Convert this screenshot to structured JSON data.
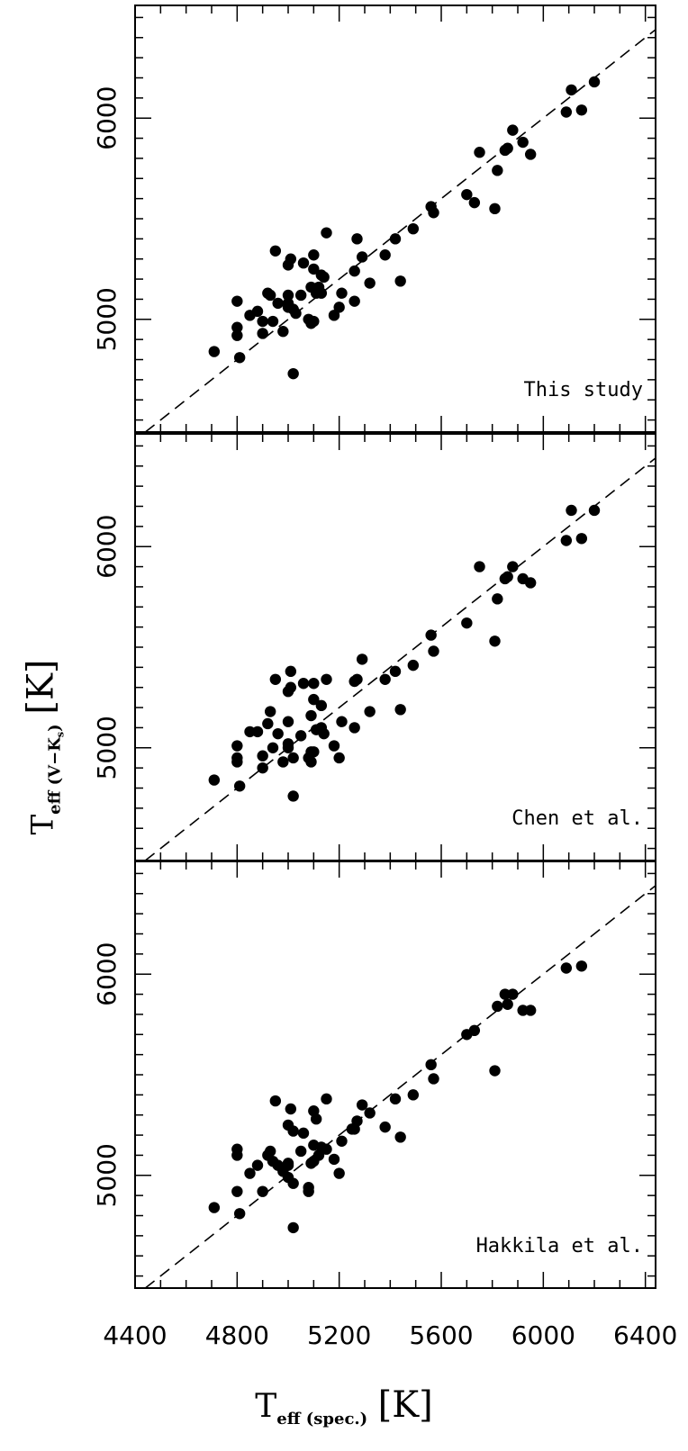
{
  "chart_data": {
    "type": "scatter",
    "x_axis": {
      "label_main": "T",
      "label_sub": "eff (spec.)",
      "unit": "[K]",
      "ticks": [
        4400,
        4800,
        5200,
        5600,
        6000,
        6400
      ],
      "xlim": [
        4400,
        6440
      ]
    },
    "y_axis": {
      "label_main": "T",
      "label_sub": "eff (V−K",
      "label_subsub": "s",
      "label_close": ")",
      "unit": "[K]",
      "ticks": [
        5000,
        6000
      ],
      "ylim": [
        4440,
        6560
      ]
    },
    "reference_line": "y = x (dashed)",
    "panels": [
      {
        "label": "This study",
        "points": [
          [
            4710,
            4840
          ],
          [
            4800,
            4960
          ],
          [
            4800,
            4920
          ],
          [
            4800,
            5090
          ],
          [
            4810,
            4810
          ],
          [
            4850,
            5020
          ],
          [
            4880,
            5040
          ],
          [
            4900,
            4990
          ],
          [
            4900,
            4930
          ],
          [
            4920,
            5130
          ],
          [
            4930,
            5120
          ],
          [
            4940,
            4990
          ],
          [
            4950,
            5340
          ],
          [
            4960,
            5080
          ],
          [
            4980,
            4940
          ],
          [
            5000,
            5080
          ],
          [
            5000,
            5120
          ],
          [
            5000,
            5060
          ],
          [
            5000,
            5270
          ],
          [
            5010,
            5300
          ],
          [
            5020,
            5050
          ],
          [
            5020,
            4730
          ],
          [
            5030,
            5030
          ],
          [
            5050,
            5120
          ],
          [
            5060,
            5280
          ],
          [
            5080,
            5000
          ],
          [
            5090,
            4980
          ],
          [
            5090,
            5160
          ],
          [
            5100,
            4990
          ],
          [
            5100,
            5320
          ],
          [
            5100,
            5250
          ],
          [
            5110,
            5130
          ],
          [
            5120,
            5160
          ],
          [
            5130,
            5220
          ],
          [
            5130,
            5130
          ],
          [
            5140,
            5210
          ],
          [
            5150,
            5430
          ],
          [
            5180,
            5020
          ],
          [
            5200,
            5060
          ],
          [
            5210,
            5130
          ],
          [
            5260,
            5240
          ],
          [
            5260,
            5090
          ],
          [
            5270,
            5400
          ],
          [
            5290,
            5310
          ],
          [
            5320,
            5180
          ],
          [
            5380,
            5320
          ],
          [
            5420,
            5400
          ],
          [
            5440,
            5190
          ],
          [
            5490,
            5450
          ],
          [
            5560,
            5560
          ],
          [
            5570,
            5530
          ],
          [
            5700,
            5620
          ],
          [
            5730,
            5580
          ],
          [
            5750,
            5830
          ],
          [
            5810,
            5550
          ],
          [
            5820,
            5740
          ],
          [
            5850,
            5840
          ],
          [
            5860,
            5850
          ],
          [
            5880,
            5940
          ],
          [
            5920,
            5880
          ],
          [
            5950,
            5820
          ],
          [
            6090,
            6030
          ],
          [
            6110,
            6140
          ],
          [
            6150,
            6040
          ],
          [
            6200,
            6180
          ]
        ]
      },
      {
        "label": "Chen et al.",
        "points": [
          [
            4710,
            4840
          ],
          [
            4800,
            5010
          ],
          [
            4800,
            4950
          ],
          [
            4800,
            4930
          ],
          [
            4810,
            4810
          ],
          [
            4850,
            5080
          ],
          [
            4880,
            5080
          ],
          [
            4900,
            4960
          ],
          [
            4900,
            4900
          ],
          [
            4920,
            5120
          ],
          [
            4930,
            5180
          ],
          [
            4940,
            5000
          ],
          [
            4950,
            5340
          ],
          [
            4960,
            5070
          ],
          [
            4980,
            4930
          ],
          [
            5000,
            5000
          ],
          [
            5000,
            5130
          ],
          [
            5000,
            5020
          ],
          [
            5000,
            5280
          ],
          [
            5010,
            5300
          ],
          [
            5010,
            5380
          ],
          [
            5020,
            4950
          ],
          [
            5020,
            4760
          ],
          [
            5050,
            5060
          ],
          [
            5060,
            5320
          ],
          [
            5080,
            4950
          ],
          [
            5090,
            4930
          ],
          [
            5090,
            4980
          ],
          [
            5090,
            5160
          ],
          [
            5100,
            4980
          ],
          [
            5100,
            5320
          ],
          [
            5100,
            5240
          ],
          [
            5110,
            5090
          ],
          [
            5130,
            5210
          ],
          [
            5130,
            5100
          ],
          [
            5140,
            5070
          ],
          [
            5150,
            5340
          ],
          [
            5180,
            5010
          ],
          [
            5200,
            4950
          ],
          [
            5210,
            5130
          ],
          [
            5260,
            5330
          ],
          [
            5260,
            5100
          ],
          [
            5270,
            5340
          ],
          [
            5290,
            5440
          ],
          [
            5320,
            5180
          ],
          [
            5380,
            5340
          ],
          [
            5420,
            5380
          ],
          [
            5440,
            5190
          ],
          [
            5490,
            5410
          ],
          [
            5560,
            5560
          ],
          [
            5570,
            5480
          ],
          [
            5700,
            5620
          ],
          [
            5750,
            5900
          ],
          [
            5810,
            5530
          ],
          [
            5820,
            5740
          ],
          [
            5850,
            5840
          ],
          [
            5860,
            5850
          ],
          [
            5880,
            5900
          ],
          [
            5920,
            5840
          ],
          [
            5950,
            5820
          ],
          [
            6090,
            6030
          ],
          [
            6110,
            6180
          ],
          [
            6150,
            6040
          ],
          [
            6200,
            6180
          ]
        ]
      },
      {
        "label": "Hakkila et al.",
        "points": [
          [
            4710,
            4840
          ],
          [
            4800,
            5130
          ],
          [
            4800,
            5100
          ],
          [
            4800,
            4920
          ],
          [
            4810,
            4810
          ],
          [
            4850,
            5010
          ],
          [
            4880,
            5050
          ],
          [
            4900,
            4920
          ],
          [
            4920,
            5100
          ],
          [
            4930,
            5120
          ],
          [
            4940,
            5070
          ],
          [
            4950,
            5370
          ],
          [
            4960,
            5050
          ],
          [
            4980,
            5020
          ],
          [
            5000,
            5050
          ],
          [
            5000,
            5060
          ],
          [
            5000,
            4990
          ],
          [
            5000,
            5250
          ],
          [
            5010,
            5330
          ],
          [
            5020,
            5220
          ],
          [
            5020,
            4960
          ],
          [
            5020,
            4740
          ],
          [
            5050,
            5120
          ],
          [
            5060,
            5210
          ],
          [
            5080,
            4940
          ],
          [
            5080,
            4920
          ],
          [
            5090,
            5060
          ],
          [
            5100,
            5070
          ],
          [
            5100,
            5320
          ],
          [
            5100,
            5150
          ],
          [
            5110,
            5280
          ],
          [
            5120,
            5100
          ],
          [
            5130,
            5140
          ],
          [
            5150,
            5130
          ],
          [
            5150,
            5380
          ],
          [
            5180,
            5080
          ],
          [
            5200,
            5010
          ],
          [
            5210,
            5170
          ],
          [
            5250,
            5230
          ],
          [
            5260,
            5230
          ],
          [
            5270,
            5270
          ],
          [
            5290,
            5350
          ],
          [
            5320,
            5310
          ],
          [
            5380,
            5240
          ],
          [
            5420,
            5380
          ],
          [
            5440,
            5190
          ],
          [
            5490,
            5400
          ],
          [
            5560,
            5550
          ],
          [
            5570,
            5480
          ],
          [
            5700,
            5700
          ],
          [
            5730,
            5720
          ],
          [
            5810,
            5520
          ],
          [
            5820,
            5840
          ],
          [
            5850,
            5900
          ],
          [
            5860,
            5850
          ],
          [
            5880,
            5900
          ],
          [
            5920,
            5820
          ],
          [
            5950,
            5820
          ],
          [
            6090,
            6030
          ],
          [
            6150,
            6040
          ]
        ]
      }
    ]
  }
}
